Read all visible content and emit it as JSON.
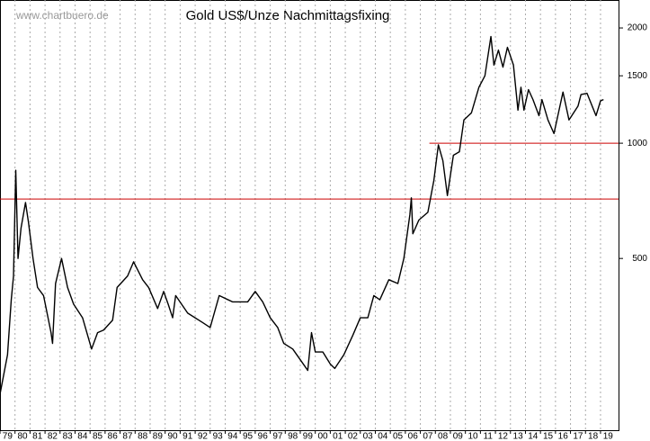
{
  "chart_data": {
    "type": "line",
    "title": "Gold US$/Unze Nachmittagsfixing",
    "watermark": "www.chartbuero.de",
    "log_scale": true,
    "grid": true,
    "xlim": [
      1979,
      2020.2
    ],
    "ylim": [
      178,
      2366
    ],
    "yticks": [
      500,
      1000,
      1500,
      2000
    ],
    "xticks": [
      {
        "value": 1979,
        "label": "79"
      },
      {
        "value": 1980,
        "label": "80"
      },
      {
        "value": 1981,
        "label": "81"
      },
      {
        "value": 1982,
        "label": "82"
      },
      {
        "value": 1983,
        "label": "83"
      },
      {
        "value": 1984,
        "label": "84"
      },
      {
        "value": 1985,
        "label": "85"
      },
      {
        "value": 1986,
        "label": "86"
      },
      {
        "value": 1987,
        "label": "87"
      },
      {
        "value": 1988,
        "label": "88"
      },
      {
        "value": 1989,
        "label": "89"
      },
      {
        "value": 1990,
        "label": "90"
      },
      {
        "value": 1991,
        "label": "91"
      },
      {
        "value": 1992,
        "label": "92"
      },
      {
        "value": 1993,
        "label": "93"
      },
      {
        "value": 1994,
        "label": "94"
      },
      {
        "value": 1995,
        "label": "95"
      },
      {
        "value": 1996,
        "label": "96"
      },
      {
        "value": 1997,
        "label": "97"
      },
      {
        "value": 1998,
        "label": "98"
      },
      {
        "value": 1999,
        "label": "99"
      },
      {
        "value": 2000,
        "label": "00"
      },
      {
        "value": 2001,
        "label": "01"
      },
      {
        "value": 2002,
        "label": "02"
      },
      {
        "value": 2003,
        "label": "03"
      },
      {
        "value": 2004,
        "label": "04"
      },
      {
        "value": 2005,
        "label": "05"
      },
      {
        "value": 2006,
        "label": "06"
      },
      {
        "value": 2007,
        "label": "07"
      },
      {
        "value": 2008,
        "label": "08"
      },
      {
        "value": 2009,
        "label": "09"
      },
      {
        "value": 2010,
        "label": "10"
      },
      {
        "value": 2011,
        "label": "11"
      },
      {
        "value": 2012,
        "label": "12"
      },
      {
        "value": 2013,
        "label": "13"
      },
      {
        "value": 2014,
        "label": "14"
      },
      {
        "value": 2015,
        "label": "15"
      },
      {
        "value": 2016,
        "label": "16"
      },
      {
        "value": 2017,
        "label": "17"
      },
      {
        "value": 2018,
        "label": "18"
      },
      {
        "value": 2019,
        "label": "19"
      }
    ],
    "reference_lines": [
      {
        "value": 715,
        "x_start": 1979,
        "color": "#cc0000"
      },
      {
        "value": 1000,
        "x_start": 2007.6,
        "color": "#cc0000"
      }
    ],
    "series": [
      {
        "color": "#000000",
        "x": [
          1979.0,
          1979.5,
          1979.75,
          1979.9,
          1980.05,
          1980.2,
          1980.4,
          1980.7,
          1980.9,
          1981.2,
          1981.5,
          1981.9,
          1982.4,
          1982.5,
          1982.7,
          1983.1,
          1983.5,
          1983.9,
          1984.5,
          1985.1,
          1985.5,
          1985.9,
          1986.5,
          1986.8,
          1987.5,
          1987.9,
          1988.5,
          1988.9,
          1989.5,
          1989.9,
          1990.2,
          1990.5,
          1990.7,
          1991.5,
          1992.5,
          1993.0,
          1993.6,
          1994.5,
          1995.5,
          1996.0,
          1996.5,
          1997.0,
          1997.5,
          1997.9,
          1998.5,
          1999.5,
          1999.75,
          2000.0,
          2000.5,
          2001.0,
          2001.3,
          2001.9,
          2002.5,
          2003.0,
          2003.5,
          2003.9,
          2004.3,
          2004.9,
          2005.5,
          2005.9,
          2006.3,
          2006.4,
          2006.5,
          2006.9,
          2007.5,
          2007.9,
          2008.2,
          2008.5,
          2008.8,
          2009.2,
          2009.6,
          2009.9,
          2010.4,
          2010.9,
          2011.3,
          2011.7,
          2011.9,
          2012.2,
          2012.5,
          2012.8,
          2013.2,
          2013.5,
          2013.7,
          2013.9,
          2014.2,
          2014.5,
          2014.9,
          2015.1,
          2015.5,
          2015.9,
          2016.5,
          2016.9,
          2017.5,
          2017.7,
          2018.1,
          2018.7,
          2019.0,
          2019.2
        ],
        "values": [
          221,
          280,
          390,
          450,
          850,
          500,
          600,
          700,
          620,
          500,
          420,
          400,
          320,
          300,
          430,
          500,
          420,
          380,
          350,
          290,
          320,
          325,
          345,
          420,
          450,
          490,
          440,
          420,
          370,
          410,
          380,
          350,
          400,
          360,
          340,
          330,
          400,
          385,
          385,
          410,
          385,
          350,
          330,
          300,
          290,
          255,
          320,
          285,
          285,
          265,
          258,
          280,
          315,
          350,
          350,
          400,
          390,
          440,
          430,
          500,
          650,
          720,
          580,
          630,
          660,
          800,
          990,
          900,
          730,
          930,
          950,
          1150,
          1200,
          1400,
          1500,
          1900,
          1600,
          1750,
          1580,
          1780,
          1600,
          1220,
          1400,
          1220,
          1380,
          1300,
          1180,
          1300,
          1150,
          1060,
          1360,
          1150,
          1250,
          1340,
          1350,
          1180,
          1290,
          1300
        ]
      }
    ]
  }
}
